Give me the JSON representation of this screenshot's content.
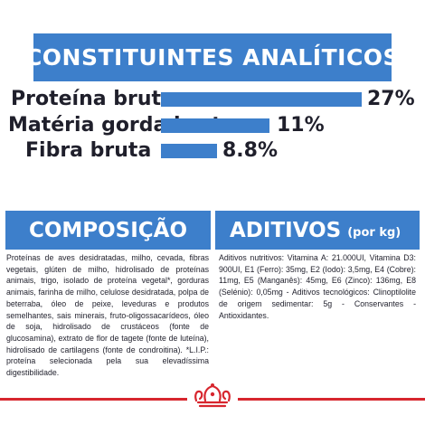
{
  "banner": {
    "title": "CONSTITUINTES ANALÍTICOS"
  },
  "analytics": {
    "rows": [
      {
        "label": "Proteína bruta",
        "value": "27%"
      },
      {
        "label": "Matéria gorda bruta",
        "value": "11%"
      },
      {
        "label": "Fibra bruta",
        "value": "8.8%"
      }
    ]
  },
  "composition": {
    "title": "COMPOSIÇÃO",
    "text": "Proteínas de aves desidratadas, milho, cevada, fibras vegetais, glúten de milho, hidrolisado de proteínas animais, trigo, isolado de proteína vegetal*, gorduras animais, farinha de milho, celulose desidratada, polpa de beterraba, óleo de peixe, leveduras e produtos semelhantes, sais minerais, fruto-oligossacarídeos, óleo de soja, hidrolisado de crustáceos (fonte de glucosamina), extrato de flor de tagete (fonte de luteína), hidrolisado de cartilagens (fonte de condroitina). *L.I.P.: proteína selecionada pela sua elevadíssima digestibilidade."
  },
  "additives": {
    "title": "ADITIVOS",
    "unit": "(por kg)",
    "text": "Aditivos nutritivos: Vitamina A: 21.000UI, Vitamina D3: 900UI, E1 (Ferro): 35mg, E2 (Iodo): 3,5mg, E4 (Cobre): 11mg, E5 (Manganês): 45mg, E6 (Zinco): 136mg, E8 (Selénio): 0,05mg - Aditivos tecnológicos: Clinoptilolite de origem sedimentar: 5g - Conservantes - Antioxidantes."
  },
  "colors": {
    "accent": "#3d7fcb",
    "brand_red": "#d7262e",
    "text": "#1f1f2b"
  },
  "footer": {
    "logo": "crown-logo-icon"
  }
}
